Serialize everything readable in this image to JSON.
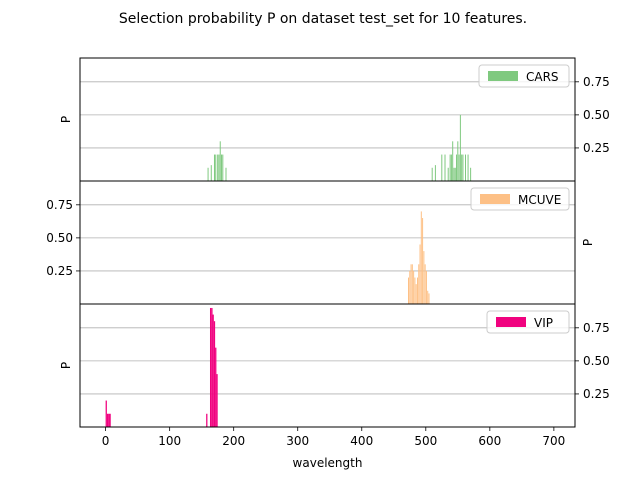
{
  "chart_data": {
    "type": "bar",
    "title": "Selection probability P on dataset test_set for 10 features.",
    "xlabel": "wavelength",
    "xlim": [
      -40,
      733
    ],
    "xticks": [
      0,
      100,
      200,
      300,
      400,
      500,
      600,
      700
    ],
    "ylabel": "P",
    "ylim": [
      0,
      0.93
    ],
    "yticks": [
      0.25,
      0.5,
      0.75
    ],
    "grid": "y",
    "legend_position": "top-right",
    "panels": [
      {
        "name": "CARS",
        "color": "#7fc97f",
        "ylabel_side": "left",
        "ytick_side": "right",
        "bar_width": 1.2,
        "bars": [
          [
            160,
            0.1
          ],
          [
            165,
            0.12
          ],
          [
            170,
            0.2
          ],
          [
            172,
            0.2
          ],
          [
            175,
            0.2
          ],
          [
            177,
            0.2
          ],
          [
            179,
            0.3
          ],
          [
            181,
            0.2
          ],
          [
            183,
            0.2
          ],
          [
            188,
            0.1
          ],
          [
            510,
            0.1
          ],
          [
            515,
            0.12
          ],
          [
            525,
            0.2
          ],
          [
            530,
            0.2
          ],
          [
            535,
            0.1
          ],
          [
            538,
            0.2
          ],
          [
            540,
            0.2
          ],
          [
            542,
            0.3
          ],
          [
            544,
            0.1
          ],
          [
            546,
            0.1
          ],
          [
            548,
            0.2
          ],
          [
            550,
            0.3
          ],
          [
            552,
            0.2
          ],
          [
            554,
            0.5
          ],
          [
            556,
            0.2
          ],
          [
            558,
            0.2
          ],
          [
            562,
            0.2
          ],
          [
            566,
            0.2
          ],
          [
            570,
            0.1
          ]
        ]
      },
      {
        "name": "MCUVE",
        "color": "#fdc086",
        "ylabel_side": "right",
        "ytick_side": "left",
        "bar_width": 1.2,
        "bars": [
          [
            473,
            0.2
          ],
          [
            475,
            0.25
          ],
          [
            477,
            0.3
          ],
          [
            479,
            0.3
          ],
          [
            481,
            0.25
          ],
          [
            483,
            0.2
          ],
          [
            485,
            0.15
          ],
          [
            487,
            0.2
          ],
          [
            489,
            0.3
          ],
          [
            491,
            0.45
          ],
          [
            493,
            0.7
          ],
          [
            495,
            0.65
          ],
          [
            497,
            0.4
          ],
          [
            499,
            0.3
          ],
          [
            501,
            0.25
          ],
          [
            503,
            0.1
          ],
          [
            505,
            0.08
          ]
        ]
      },
      {
        "name": "VIP",
        "color": "#f0027f",
        "ylabel_side": "left",
        "ytick_side": "right",
        "bar_width": 2,
        "bars": [
          [
            1,
            0.2
          ],
          [
            3,
            0.1
          ],
          [
            5,
            0.1
          ],
          [
            7,
            0.1
          ],
          [
            158,
            0.1
          ],
          [
            164,
            0.9
          ],
          [
            166,
            0.9
          ],
          [
            168,
            0.85
          ],
          [
            170,
            0.8
          ],
          [
            172,
            0.6
          ],
          [
            174,
            0.4
          ]
        ]
      }
    ]
  }
}
